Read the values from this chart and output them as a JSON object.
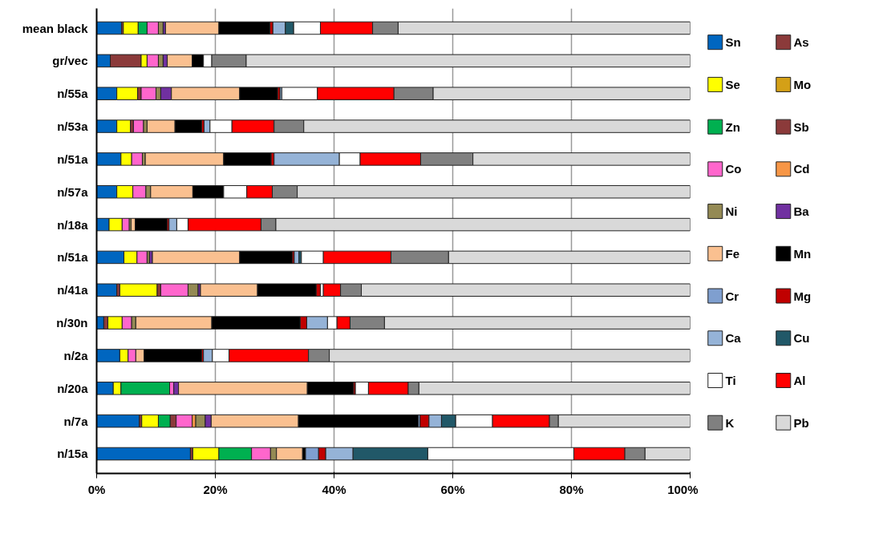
{
  "chart_data": {
    "type": "bar",
    "orientation": "horizontal",
    "stacked": true,
    "grid": "x",
    "legend": "right",
    "categories": [
      "mean black",
      "gr/vec",
      "n/55a",
      "n/53a",
      "n/51a",
      "n/57a",
      "n/18a",
      "n/51a",
      "n/41a",
      "n/30n",
      "n/2a",
      "n/20a",
      "n/7a",
      "n/15a"
    ],
    "xlim": [
      0,
      100
    ],
    "xticks": [
      {
        "value": 0,
        "label": "0%"
      },
      {
        "value": 20,
        "label": "20%"
      },
      {
        "value": 40,
        "label": "40%"
      },
      {
        "value": 60,
        "label": "60%"
      },
      {
        "value": 80,
        "label": "80%"
      },
      {
        "value": 100,
        "label": "100%"
      }
    ],
    "series": [
      {
        "name": "Sn",
        "color": "#0066c0",
        "values": [
          4.2,
          2.3,
          3.4,
          3.4,
          4.1,
          3.4,
          2.1,
          4.6,
          3.4,
          1.2,
          3.9,
          2.8,
          7.2,
          15.8
        ]
      },
      {
        "name": "As",
        "color": "#8b3a3a",
        "values": [
          0.3,
          5.2,
          0,
          0,
          0,
          0,
          0,
          0,
          0.5,
          0.7,
          0,
          0,
          0.4,
          0.4
        ]
      },
      {
        "name": "Se",
        "color": "#ffff00",
        "values": [
          2.5,
          1.0,
          3.5,
          2.3,
          1.8,
          2.7,
          2.2,
          2.2,
          6.3,
          2.4,
          1.4,
          1.3,
          2.8,
          4.4
        ]
      },
      {
        "name": "Mo",
        "color": "#d4a017",
        "values": [
          0,
          0,
          0,
          0,
          0,
          0,
          0,
          0,
          0,
          0,
          0,
          0,
          0,
          0
        ]
      },
      {
        "name": "Zn",
        "color": "#00b050",
        "values": [
          1.5,
          0,
          0,
          0,
          0,
          0,
          0,
          0,
          0,
          0,
          0,
          8.2,
          2.0,
          5.5
        ]
      },
      {
        "name": "Sb",
        "color": "#8b3a3a",
        "values": [
          0,
          0,
          0.6,
          0.5,
          0,
          0,
          0,
          0,
          0.6,
          0,
          0,
          0,
          1.0,
          0
        ]
      },
      {
        "name": "Co",
        "color": "#ff66cc",
        "values": [
          1.9,
          1.9,
          2.5,
          1.7,
          1.8,
          2.2,
          1.2,
          1.7,
          4.6,
          1.6,
          1.3,
          0.7,
          2.7,
          3.2
        ]
      },
      {
        "name": "Cd",
        "color": "#f79646",
        "values": [
          0,
          0,
          0,
          0,
          0,
          0,
          0,
          0,
          0,
          0,
          0,
          0,
          0.6,
          0
        ]
      },
      {
        "name": "Ni",
        "color": "#948a54",
        "values": [
          0.8,
          0.8,
          0.8,
          0.6,
          0.5,
          0.8,
          0.3,
          0.4,
          1.7,
          0.7,
          0,
          0,
          1.6,
          1.0
        ]
      },
      {
        "name": "Ba",
        "color": "#7030a0",
        "values": [
          0.4,
          0.7,
          1.8,
          0,
          0,
          0,
          0,
          0.5,
          0.4,
          0,
          0,
          0.8,
          1.0,
          0
        ]
      },
      {
        "name": "Fe",
        "color": "#fac090",
        "values": [
          9.0,
          4.2,
          11.5,
          4.7,
          13.2,
          7.1,
          0.7,
          14.7,
          9.6,
          12.8,
          1.4,
          21.7,
          14.7,
          4.4
        ]
      },
      {
        "name": "Mn",
        "color": "#000000",
        "values": [
          8.6,
          1.9,
          6.4,
          4.5,
          8.0,
          5.2,
          5.4,
          8.9,
          9.9,
          14.9,
          9.7,
          7.8,
          20.2,
          0.5
        ]
      },
      {
        "name": "Cr",
        "color": "#7f9fcf",
        "values": [
          0,
          0,
          0,
          0,
          0,
          0,
          0,
          0,
          0,
          0,
          0,
          0,
          0.3,
          2.2
        ]
      },
      {
        "name": "Mg",
        "color": "#c00000",
        "values": [
          0.5,
          0,
          0.4,
          0.4,
          0.5,
          0,
          0.3,
          0.3,
          0.7,
          1.1,
          0.3,
          0.3,
          1.5,
          1.2
        ]
      },
      {
        "name": "Ca",
        "color": "#95b3d7",
        "values": [
          2.1,
          0,
          0.3,
          1.0,
          11.0,
          0,
          1.3,
          0.8,
          0,
          3.5,
          1.5,
          0,
          2.1,
          4.6
        ]
      },
      {
        "name": "Cu",
        "color": "#215868",
        "values": [
          1.4,
          0,
          0,
          0,
          0,
          0,
          0,
          0.4,
          0,
          0,
          0,
          0,
          2.4,
          12.6
        ]
      },
      {
        "name": "Ti",
        "color": "#ffffff",
        "values": [
          4.5,
          1.4,
          6.0,
          3.7,
          3.5,
          3.9,
          1.9,
          3.7,
          0.5,
          1.6,
          2.8,
          2.2,
          6.2,
          24.6
        ]
      },
      {
        "name": "Al",
        "color": "#ff0000",
        "values": [
          8.8,
          0,
          12.9,
          7.1,
          10.2,
          4.3,
          12.3,
          11.4,
          2.9,
          2.2,
          13.4,
          6.7,
          9.6,
          8.6
        ]
      },
      {
        "name": "K",
        "color": "#808080",
        "values": [
          4.3,
          5.8,
          6.6,
          5.0,
          8.8,
          4.2,
          2.5,
          9.7,
          3.5,
          5.8,
          3.5,
          1.8,
          1.5,
          3.4
        ]
      },
      {
        "name": "Pb",
        "color": "#d9d9d9",
        "values": [
          49.2,
          74.8,
          43.3,
          65.1,
          36.6,
          66.2,
          69.8,
          40.7,
          55.4,
          51.5,
          60.8,
          45.7,
          22.2,
          7.6
        ]
      }
    ]
  }
}
